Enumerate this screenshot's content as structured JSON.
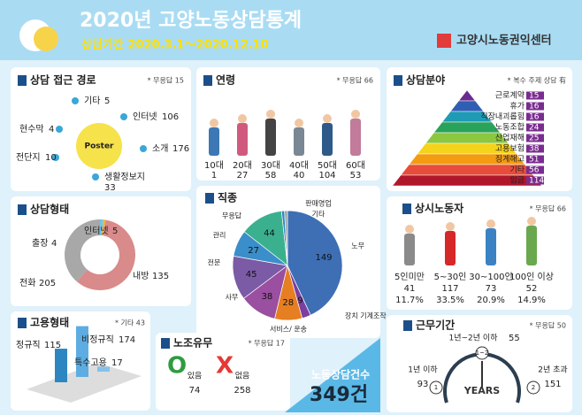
{
  "header": {
    "title": "2020년 고양노동상담통계",
    "subtitle": "상담기간 2020.3.1～2020.12.10",
    "org": "고양시노동권익센터"
  },
  "access": {
    "title": "상담 접근 경로",
    "note": "* 무응답 15",
    "poster": "Poster",
    "items": [
      {
        "label": "기타",
        "value": 5
      },
      {
        "label": "현수막",
        "value": 4
      },
      {
        "label": "인터넷",
        "value": 106
      },
      {
        "label": "소개",
        "value": 176
      },
      {
        "label": "전단지",
        "value": 10
      },
      {
        "label": "생활정보지",
        "value": 33
      }
    ]
  },
  "age": {
    "title": "연령",
    "note": "* 무응답 66",
    "items": [
      {
        "label": "10대",
        "value": 1
      },
      {
        "label": "20대",
        "value": 27
      },
      {
        "label": "30대",
        "value": 58
      },
      {
        "label": "40대",
        "value": 40
      },
      {
        "label": "50대",
        "value": 104
      },
      {
        "label": "60대",
        "value": 53
      }
    ]
  },
  "field": {
    "title": "상담분야",
    "note": "* 복수 주제 상담 有",
    "items": [
      {
        "label": "근로계약",
        "value": 15
      },
      {
        "label": "휴가",
        "value": 16
      },
      {
        "label": "직장내괴롭힘",
        "value": 16
      },
      {
        "label": "노동조합",
        "value": 24
      },
      {
        "label": "산업재해",
        "value": 25
      },
      {
        "label": "고용보험",
        "value": 38
      },
      {
        "label": "징계해고",
        "value": 51
      },
      {
        "label": "기타",
        "value": 56
      },
      {
        "label": "임금",
        "value": 114
      }
    ]
  },
  "form": {
    "title": "상담형태",
    "items": [
      {
        "label": "인터넷",
        "value": 5
      },
      {
        "label": "출장",
        "value": 4
      },
      {
        "label": "전화",
        "value": 205
      },
      {
        "label": "내방",
        "value": 135
      }
    ]
  },
  "job": {
    "title": "직종",
    "items": [
      {
        "label": "노무",
        "value": 149
      },
      {
        "label": "장치 기계조작",
        "value": 9
      },
      {
        "label": "서비스/ 운송",
        "value": 28
      },
      {
        "label": "사무",
        "value": 38
      },
      {
        "label": "전문",
        "value": 45
      },
      {
        "label": "관리",
        "value": 27
      },
      {
        "label": "무응답",
        "value": 44
      },
      {
        "label": "판매영업",
        "value": 3
      },
      {
        "label": "기타",
        "value": 3
      }
    ]
  },
  "regular": {
    "title": "상시노동자",
    "note": "* 무응답 66",
    "items": [
      {
        "label": "5인미만",
        "value": 41,
        "percent": "11.7%"
      },
      {
        "label": "5~30인",
        "value": 117,
        "percent": "33.5%"
      },
      {
        "label": "30~100인",
        "value": 73,
        "percent": "20.9%"
      },
      {
        "label": "100인 이상",
        "value": 52,
        "percent": "14.9%"
      }
    ]
  },
  "employment": {
    "title": "고용형태",
    "note": "* 기타 43",
    "items": [
      {
        "label": "정규직",
        "value": 115
      },
      {
        "label": "비정규직",
        "value": 174
      },
      {
        "label": "특수고용",
        "value": 17
      }
    ]
  },
  "union": {
    "title": "노조유무",
    "note": "* 무응답 17",
    "items": [
      {
        "mark": "O",
        "label": "있음",
        "value": 74
      },
      {
        "mark": "X",
        "label": "없음",
        "value": 258
      }
    ]
  },
  "total": {
    "label": "노동상담건수",
    "value": "349건"
  },
  "tenure": {
    "title": "근무기간",
    "note": "* 무응답 50",
    "clock": "YEARS",
    "items": [
      {
        "badge": "1",
        "label": "1년 이하",
        "value": 93
      },
      {
        "badge": "1~2",
        "label": "1년~2년 이하",
        "value": 55
      },
      {
        "badge": "2",
        "label": "2년 초과",
        "value": 151
      }
    ]
  }
}
